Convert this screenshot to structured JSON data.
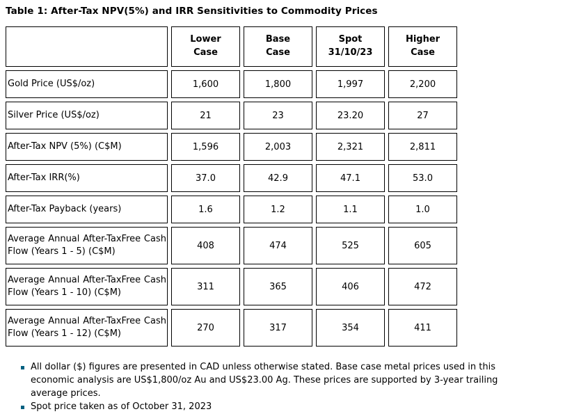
{
  "title": "Table 1: After-Tax NPV(5%) and IRR Sensitivities to Commodity Prices",
  "table": {
    "columns": [
      "",
      "Lower\nCase",
      "Base\nCase",
      "Spot\n31/10/23",
      "Higher\nCase"
    ],
    "rows": [
      {
        "label": "Gold Price (US$/oz)",
        "tall": false,
        "values": [
          "1,600",
          "1,800",
          "1,997",
          "2,200"
        ]
      },
      {
        "label": "Silver Price (US$/oz)",
        "tall": false,
        "values": [
          "21",
          "23",
          "23.20",
          "27"
        ]
      },
      {
        "label": "After-Tax NPV (5%) (C$M)",
        "tall": false,
        "values": [
          "1,596",
          "2,003",
          "2,321",
          "2,811"
        ]
      },
      {
        "label": "After-Tax IRR(%)",
        "tall": false,
        "values": [
          "37.0",
          "42.9",
          "47.1",
          "53.0"
        ]
      },
      {
        "label": "After-Tax Payback (years)",
        "tall": false,
        "values": [
          "1.6",
          "1.2",
          "1.1",
          "1.0"
        ]
      },
      {
        "label": "Average Annual After-TaxFree Cash Flow (Years 1 - 5) (C$M)",
        "tall": true,
        "values": [
          "408",
          "474",
          "525",
          "605"
        ]
      },
      {
        "label": "Average Annual After-TaxFree Cash Flow (Years 1 - 10) (C$M)",
        "tall": true,
        "values": [
          "311",
          "365",
          "406",
          "472"
        ]
      },
      {
        "label": "Average Annual After-TaxFree Cash Flow (Years 1 - 12) (C$M)",
        "tall": true,
        "values": [
          "270",
          "317",
          "354",
          "411"
        ]
      }
    ]
  },
  "footnotes": {
    "bullet_color": "#006080",
    "items": [
      "All dollar ($) figures are presented in CAD unless otherwise stated. Base case metal prices used in this economic analysis are US$1,800/oz Au and US$23.00 Ag. These prices are supported by 3-year trailing average prices.",
      "Spot price taken as of October 31, 2023"
    ]
  }
}
